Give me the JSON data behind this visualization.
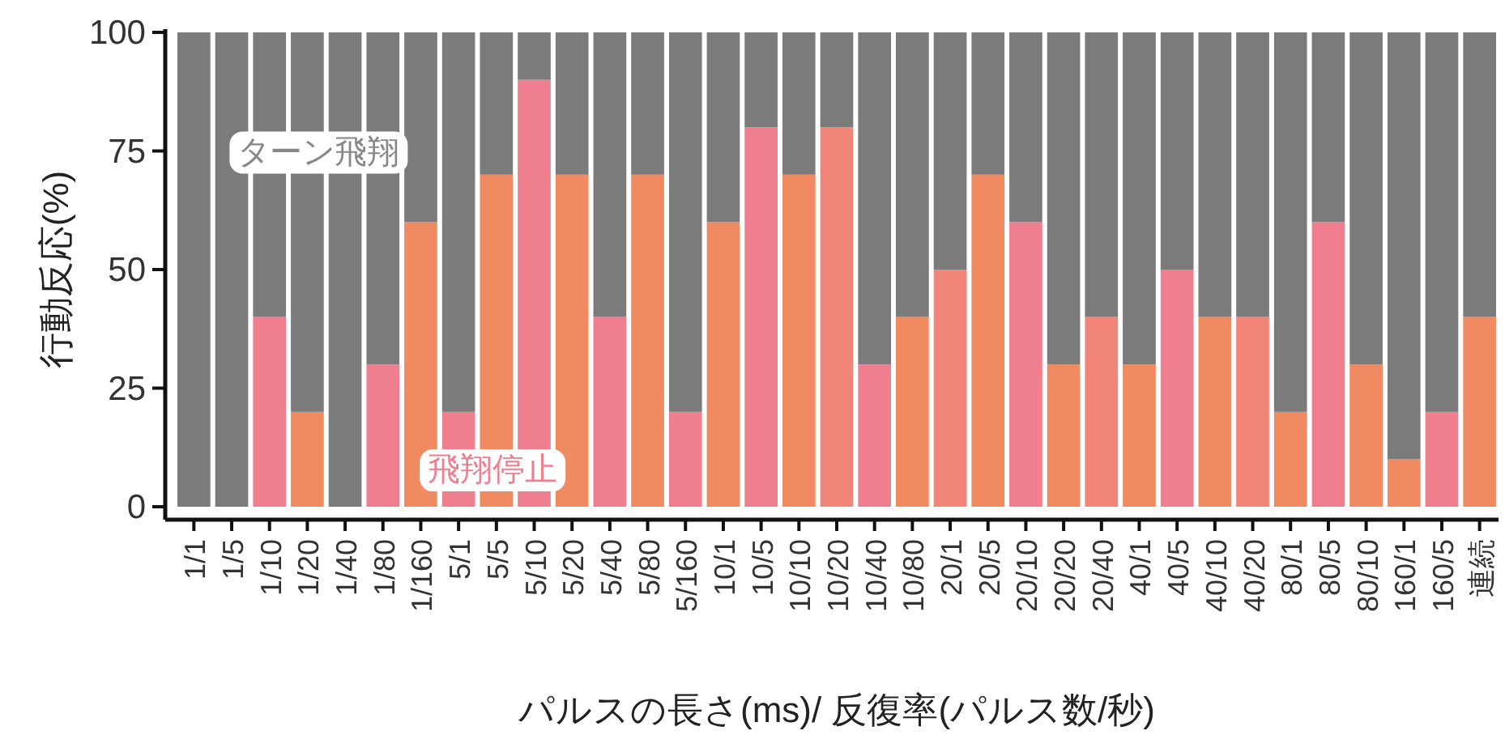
{
  "chart_data": {
    "type": "bar",
    "stacked": true,
    "xlabel": "パルスの長さ(ms)/ 反復率(パルス数/秒)",
    "ylabel": "行動反応(%)",
    "categories": [
      "1/1",
      "1/5",
      "1/10",
      "1/20",
      "1/40",
      "1/80",
      "1/160",
      "5/1",
      "5/5",
      "5/10",
      "5/20",
      "5/40",
      "5/80",
      "5/160",
      "10/1",
      "10/5",
      "10/10",
      "10/20",
      "10/40",
      "10/80",
      "20/1",
      "20/5",
      "20/10",
      "20/20",
      "20/40",
      "40/1",
      "40/5",
      "40/10",
      "40/20",
      "80/1",
      "80/5",
      "80/10",
      "160/1",
      "160/5",
      "連続"
    ],
    "series": [
      {
        "name": "飛翔停止",
        "colors": [
          "#ef7f8e",
          "#f08a60",
          "#ef7f8e",
          "#f08a60",
          "#ef7f8e",
          "#ef7f8e",
          "#f08a60",
          "#ef7f8e",
          "#f08a60",
          "#ef7f8e",
          "#f08a60",
          "#ef7f8e",
          "#f08a60",
          "#ef7f8e",
          "#f08a60",
          "#ef7f8e",
          "#f08a60",
          "#f2857a",
          "#ef7f8e",
          "#f08a60",
          "#f2857a",
          "#f08a60",
          "#ef7f8e",
          "#f08a60",
          "#f2857a",
          "#f08a60",
          "#ef7f8e",
          "#f08a60",
          "#f2857a",
          "#f08a60",
          "#ef7f8e",
          "#f08a60",
          "#f08a60",
          "#ef7f8e",
          "#f08a60"
        ],
        "values": [
          0,
          0,
          40,
          20,
          0,
          30,
          60,
          20,
          70,
          90,
          70,
          40,
          70,
          20,
          60,
          80,
          70,
          80,
          30,
          40,
          50,
          70,
          60,
          30,
          40,
          30,
          50,
          40,
          40,
          20,
          60,
          30,
          10,
          20,
          40
        ]
      },
      {
        "name": "ターン飛翔",
        "color": "#7b7b7b",
        "values": [
          100,
          100,
          60,
          80,
          100,
          70,
          40,
          80,
          30,
          10,
          30,
          60,
          30,
          80,
          40,
          20,
          30,
          20,
          70,
          60,
          50,
          30,
          40,
          70,
          60,
          70,
          50,
          60,
          60,
          80,
          40,
          70,
          90,
          80,
          60
        ]
      }
    ],
    "ylim": [
      0,
      100
    ],
    "yticks": [
      0,
      25,
      50,
      75,
      100
    ],
    "legend": false
  }
}
